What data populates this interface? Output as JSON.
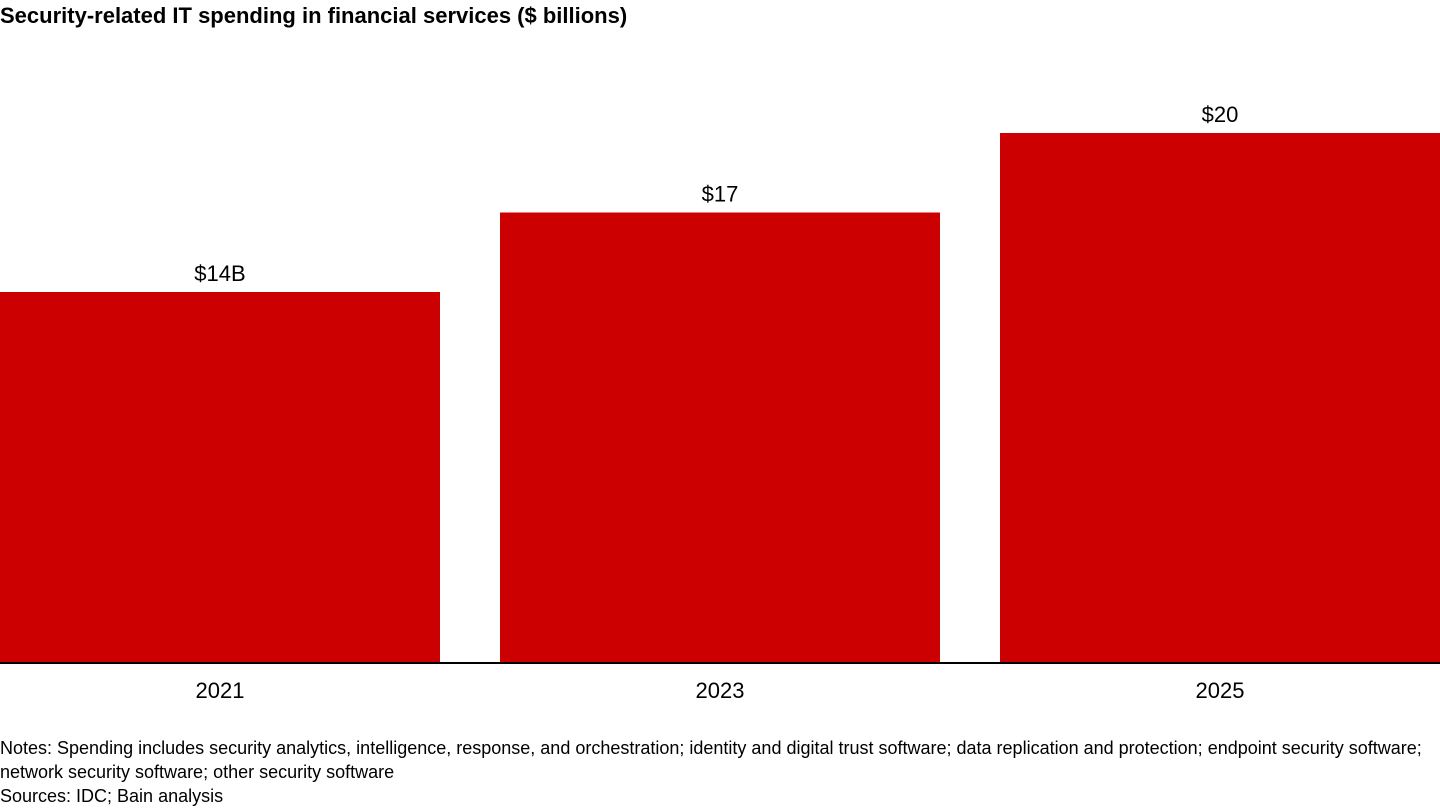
{
  "chart_data": {
    "type": "bar",
    "title": "Security-related IT spending in financial services ($ billions)",
    "categories": [
      "2021",
      "2023",
      "2025"
    ],
    "values": [
      14,
      17,
      20
    ],
    "value_labels": [
      "$14B",
      "$17",
      "$20"
    ],
    "color": "#cc0000",
    "notes": "Notes: Spending includes security analytics, intelligence, response, and orchestration; identity and digital trust software; data replication and protection; endpoint security software; network security software; other security software",
    "sources": "Sources: IDC; Bain analysis"
  }
}
